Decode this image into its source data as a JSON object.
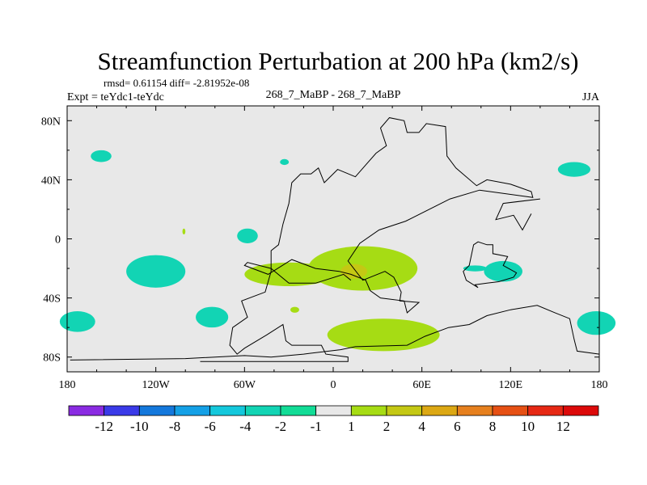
{
  "chart_data": {
    "type": "heatmap",
    "title": "Streamfunction Perturbation at 200 hPa (km2/s)",
    "subtitle_stats": "rmsd= 0.61154 diff= -2.81952e-08",
    "left_label": "Expt = teYdc1-teYdc",
    "center_label": "268_7_MaBP - 268_7_MaBP",
    "right_label": "JJA",
    "xlim": [
      -180,
      180
    ],
    "ylim": [
      -90,
      90
    ],
    "x_ticks": [
      {
        "value": -180,
        "label": "180"
      },
      {
        "value": -120,
        "label": "120W"
      },
      {
        "value": -60,
        "label": "60W"
      },
      {
        "value": 0,
        "label": "0"
      },
      {
        "value": 60,
        "label": "60E"
      },
      {
        "value": 120,
        "label": "120E"
      },
      {
        "value": 180,
        "label": "180"
      }
    ],
    "y_ticks": [
      {
        "value": 80,
        "label": "80N"
      },
      {
        "value": 40,
        "label": "40N"
      },
      {
        "value": 0,
        "label": "0"
      },
      {
        "value": -40,
        "label": "40S"
      },
      {
        "value": -80,
        "label": "80S"
      }
    ],
    "background_color": "#e8e8e8",
    "colorbar": {
      "levels": [
        -12,
        -10,
        -8,
        -6,
        -4,
        -2,
        -1,
        1,
        2,
        4,
        6,
        8,
        10,
        12
      ],
      "colors": [
        "#8a2be2",
        "#3a3ae8",
        "#1478dc",
        "#14a0e6",
        "#14c8dc",
        "#12d4b4",
        "#12dc96",
        "#e8e8e8",
        "#a6dc14",
        "#c4c814",
        "#dca814",
        "#e6801e",
        "#e65014",
        "#e62814",
        "#dc0a0a"
      ]
    },
    "anomalies": [
      {
        "lon": -157,
        "lat": 56,
        "rlon": 7,
        "rlat": 4,
        "level": "-1 to -2"
      },
      {
        "lon": -33,
        "lat": 52,
        "rlon": 3,
        "rlat": 2,
        "level": "-1 to -2"
      },
      {
        "lon": 163,
        "lat": 47,
        "rlon": 11,
        "rlat": 5,
        "level": "-1 to -2"
      },
      {
        "lon": -101,
        "lat": 5,
        "rlon": 1,
        "rlat": 2,
        "level": "1 to 2"
      },
      {
        "lon": -58,
        "lat": 2,
        "rlon": 7,
        "rlat": 5,
        "level": "-1 to -2"
      },
      {
        "lon": -120,
        "lat": -22,
        "rlon": 20,
        "rlat": 11,
        "level": "-1 to -2"
      },
      {
        "lon": -173,
        "lat": -56,
        "rlon": 12,
        "rlat": 7,
        "level": "-1 to -2"
      },
      {
        "lon": -82,
        "lat": -53,
        "rlon": 11,
        "rlat": 7,
        "level": "-1 to -2"
      },
      {
        "lon": -26,
        "lat": -48,
        "rlon": 3,
        "rlat": 2,
        "level": "1 to 2"
      },
      {
        "lon": -30,
        "lat": -24,
        "rlon": 30,
        "rlat": 8,
        "level": "1 to 2"
      },
      {
        "lon": 20,
        "lat": -20,
        "rlon": 37,
        "rlat": 15,
        "level": "1 to 2"
      },
      {
        "lon": 14,
        "lat": -22,
        "rlon": 9,
        "rlat": 5,
        "level": "2 to 4"
      },
      {
        "lon": 34,
        "lat": -65,
        "rlon": 38,
        "rlat": 11,
        "level": "1 to 2"
      },
      {
        "lon": 115,
        "lat": -22,
        "rlon": 13,
        "rlat": 7,
        "level": "-1 to -2"
      },
      {
        "lon": 96,
        "lat": -20,
        "rlon": 8,
        "rlat": 2,
        "level": "-1 to -2"
      },
      {
        "lon": 178,
        "lat": -57,
        "rlon": 13,
        "rlat": 8,
        "level": "-1 to -2"
      }
    ],
    "continents": [
      {
        "name": "main-landmass",
        "points": [
          [
            -90,
            -83
          ],
          [
            10,
            -83
          ],
          [
            10,
            -80
          ],
          [
            -5,
            -78
          ],
          [
            -8,
            -72
          ],
          [
            -28,
            -72
          ],
          [
            -32,
            -69
          ],
          [
            -34,
            -58
          ],
          [
            -45,
            -65
          ],
          [
            -60,
            -74
          ],
          [
            -65,
            -78
          ],
          [
            -70,
            -72
          ],
          [
            -68,
            -60
          ],
          [
            -58,
            -53
          ],
          [
            -62,
            -42
          ],
          [
            -46,
            -36
          ],
          [
            -42,
            -22
          ],
          [
            -42,
            -8
          ],
          [
            -37,
            -4
          ],
          [
            -34,
            10
          ],
          [
            -30,
            24
          ],
          [
            -28,
            38
          ],
          [
            -22,
            44
          ],
          [
            -15,
            44
          ],
          [
            -10,
            48
          ],
          [
            -6,
            38
          ],
          [
            3,
            47
          ],
          [
            15,
            42
          ],
          [
            22,
            50
          ],
          [
            29,
            58
          ],
          [
            36,
            63
          ],
          [
            32,
            75
          ],
          [
            38,
            82
          ],
          [
            48,
            80
          ],
          [
            50,
            72
          ],
          [
            58,
            72
          ],
          [
            63,
            78
          ],
          [
            76,
            76
          ],
          [
            77,
            56
          ],
          [
            83,
            48
          ],
          [
            97,
            36
          ],
          [
            104,
            40
          ],
          [
            120,
            37
          ],
          [
            134,
            32
          ],
          [
            135,
            28
          ],
          [
            99,
            33
          ],
          [
            79,
            27
          ],
          [
            49,
            12
          ],
          [
            31,
            6
          ],
          [
            18,
            -3
          ],
          [
            10,
            -15
          ],
          [
            20,
            -28
          ],
          [
            35,
            -22
          ],
          [
            41,
            -26
          ],
          [
            46,
            -36
          ],
          [
            45,
            -42
          ],
          [
            58,
            -43
          ],
          [
            50,
            -50
          ],
          [
            48,
            -42
          ],
          [
            32,
            -40
          ],
          [
            25,
            -35
          ],
          [
            22,
            -28
          ],
          [
            12,
            -24
          ],
          [
            4,
            -22
          ],
          [
            -12,
            -20
          ],
          [
            -28,
            -14
          ],
          [
            -44,
            -24
          ],
          [
            -60,
            -18
          ],
          [
            -58,
            -16
          ],
          [
            -42,
            -20
          ],
          [
            -30,
            -30
          ],
          [
            -12,
            -30
          ],
          [
            7,
            -24
          ],
          [
            12,
            -28
          ]
        ]
      },
      {
        "name": "southern-continent",
        "points": [
          [
            -178,
            -82
          ],
          [
            -100,
            -81
          ],
          [
            -60,
            -79
          ],
          [
            -42,
            -80
          ],
          [
            -20,
            -78
          ],
          [
            5,
            -75
          ],
          [
            15,
            -73
          ],
          [
            50,
            -72
          ],
          [
            62,
            -66
          ],
          [
            78,
            -60
          ],
          [
            92,
            -58
          ],
          [
            104,
            -52
          ],
          [
            120,
            -48
          ],
          [
            138,
            -45
          ],
          [
            150,
            -50
          ],
          [
            160,
            -54
          ],
          [
            163,
            -68
          ],
          [
            165,
            -76
          ],
          [
            180,
            -78
          ]
        ]
      },
      {
        "name": "southeast-islands",
        "points": [
          [
            98,
            -33
          ],
          [
            90,
            -28
          ],
          [
            88,
            -22
          ],
          [
            92,
            -18
          ],
          [
            95,
            -4
          ],
          [
            98,
            -2
          ],
          [
            104,
            -4
          ],
          [
            108,
            -4
          ],
          [
            108,
            -10
          ],
          [
            118,
            -12
          ],
          [
            115,
            -18
          ],
          [
            124,
            -23
          ],
          [
            122,
            -26
          ],
          [
            112,
            -29
          ],
          [
            104,
            -30
          ],
          [
            96,
            -31
          ],
          [
            98,
            -33
          ]
        ]
      },
      {
        "name": "northeast-coast",
        "points": [
          [
            140,
            27
          ],
          [
            115,
            24
          ],
          [
            110,
            13
          ],
          [
            122,
            16
          ],
          [
            128,
            6
          ],
          [
            134,
            17
          ]
        ]
      }
    ]
  }
}
